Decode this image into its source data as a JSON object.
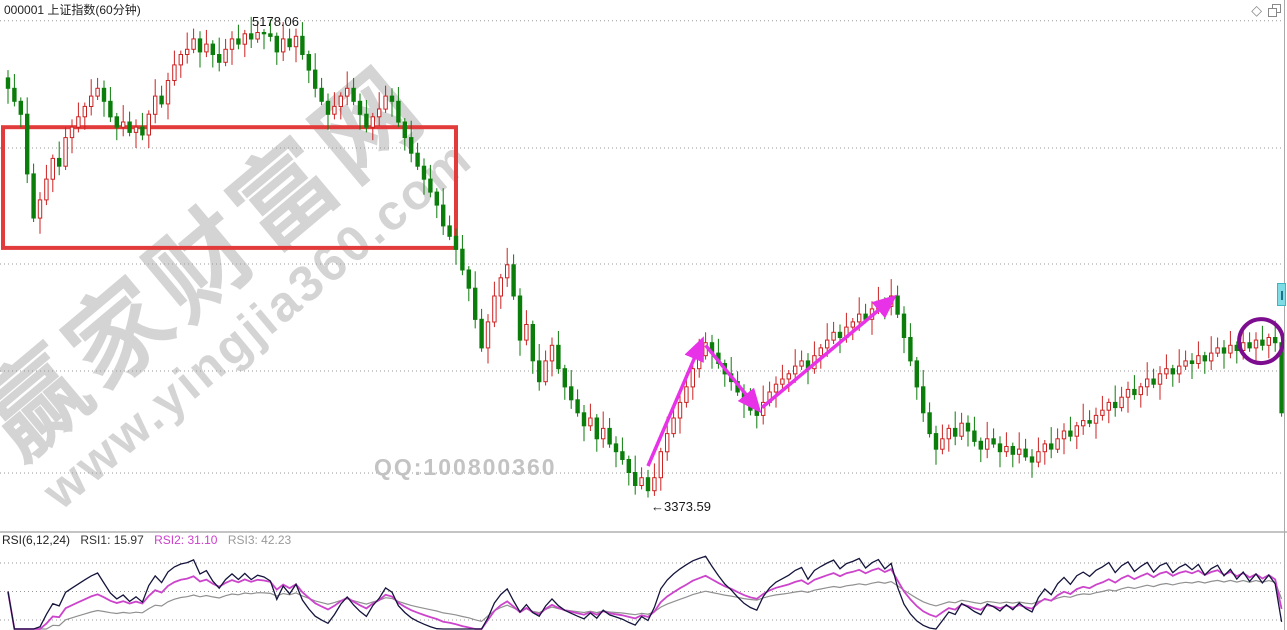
{
  "header": {
    "title": "000001 上证指数(60分钟)"
  },
  "annotations": {
    "qq": "QQ:100800360"
  },
  "watermark": {
    "line1": "赢家财富网",
    "line2": "www.yingjia360.com"
  },
  "rsi_labels": {
    "param": "RSI(6,12,24)",
    "rsi1": "RSI1: 15.97",
    "rsi2": "RSI2: 31.10",
    "rsi3": "RSI3: 42.23"
  },
  "colors": {
    "up": "#cc2222",
    "down": "#0b7d0b",
    "grid": "#999999",
    "box": "#e23b3b",
    "arrow": "#e832e8",
    "circle": "#7c0d8e",
    "rsi1": "#14143c",
    "rsi2": "#cc44cc",
    "rsi3": "#909090",
    "watermark": "#d4d4d4"
  },
  "chart_data": [
    {
      "type": "candlestick",
      "symbol": "000001",
      "name": "上证指数",
      "period": "60分钟",
      "title": "000001 上证指数(60分钟)",
      "ylim": [
        3210,
        5290
      ],
      "grid": true,
      "gridline_prices": [
        5210,
        4720,
        4273,
        3861,
        3468
      ],
      "open_rule": "previous_close",
      "closes": [
        4950,
        4900,
        4850,
        4620,
        4450,
        4520,
        4600,
        4680,
        4650,
        4760,
        4800,
        4840,
        4880,
        4920,
        4950,
        4900,
        4840,
        4800,
        4820,
        4780,
        4800,
        4770,
        4850,
        4920,
        4890,
        4980,
        5040,
        5080,
        5100,
        5140,
        5090,
        5120,
        5080,
        5050,
        5100,
        5140,
        5120,
        5160,
        5140,
        5165,
        5160,
        5150,
        5090,
        5140,
        5110,
        5150,
        5080,
        5020,
        4950,
        4900,
        4850,
        4880,
        4920,
        4950,
        4900,
        4850,
        4800,
        4840,
        4870,
        4920,
        4900,
        4820,
        4760,
        4700,
        4650,
        4600,
        4550,
        4500,
        4420,
        4380,
        4330,
        4250,
        4180,
        4060,
        3950,
        4050,
        4150,
        4220,
        4270,
        4150,
        3980,
        4040,
        3900,
        3820,
        3900,
        3960,
        3870,
        3800,
        3750,
        3700,
        3650,
        3680,
        3600,
        3640,
        3580,
        3550,
        3520,
        3470,
        3420,
        3450,
        3400,
        3450,
        3550,
        3620,
        3680,
        3740,
        3800,
        3870,
        3920,
        3970,
        3930,
        3890,
        3850,
        3820,
        3780,
        3740,
        3710,
        3690,
        3740,
        3780,
        3810,
        3830,
        3850,
        3880,
        3900,
        3870,
        3920,
        3950,
        3980,
        4010,
        3990,
        4030,
        4050,
        4080,
        4060,
        4100,
        4130,
        4110,
        4150,
        4080,
        3990,
        3900,
        3800,
        3700,
        3620,
        3560,
        3600,
        3640,
        3610,
        3660,
        3630,
        3590,
        3560,
        3600,
        3580,
        3550,
        3570,
        3540,
        3560,
        3530,
        3510,
        3550,
        3580,
        3560,
        3600,
        3630,
        3610,
        3650,
        3670,
        3660,
        3690,
        3710,
        3740,
        3720,
        3760,
        3790,
        3770,
        3800,
        3830,
        3810,
        3850,
        3870,
        3850,
        3880,
        3900,
        3890,
        3920,
        3900,
        3930,
        3950,
        3930,
        3960,
        3940,
        3970,
        3950,
        3980,
        3960,
        3990,
        3970,
        3700
      ],
      "high_annotation": {
        "text": "5178.06",
        "value": 5178.06,
        "index": 40
      },
      "low_annotation": {
        "text": "←3373.59",
        "value": 3373.59,
        "index": 100
      },
      "overlays": {
        "support_box": {
          "from_x": 3,
          "to_index": 70,
          "price_top": 4800,
          "price_bottom": 4335
        },
        "trend_arrows": [
          {
            "from": [
              100,
              3495
            ],
            "to": [
              108.4,
              3976
            ]
          },
          {
            "from": [
              109,
              3960
            ],
            "to": [
              117.2,
              3714
            ]
          },
          {
            "from": [
              117.8,
              3720
            ],
            "to": [
              138.3,
              4142
            ]
          }
        ],
        "highlight_circle": {
          "index": 195.8,
          "price": 3976,
          "radius_px": 22
        }
      }
    },
    {
      "type": "line",
      "name": "RSI",
      "periods": [
        6,
        12,
        24
      ],
      "legend": [
        "RSI1",
        "RSI2",
        "RSI3"
      ],
      "current_values": [
        15.97,
        31.1,
        42.23
      ],
      "ylim": [
        0,
        100
      ],
      "gridlines": [
        80,
        50,
        20
      ],
      "source": "computed from candlestick closes"
    }
  ]
}
